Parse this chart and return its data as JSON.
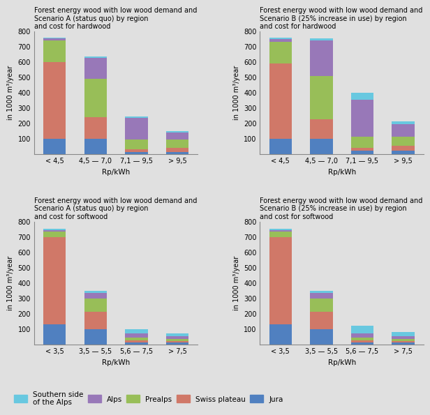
{
  "background_color": "#e0e0e0",
  "colors": {
    "jura": "#5080c0",
    "swiss_plateau": "#d07868",
    "prealps": "#98be58",
    "alps": "#9878b8",
    "southern_alps": "#68c8e0"
  },
  "legend_labels": [
    "Southern side\nof the Alps",
    "Alps",
    "Prealps",
    "Swiss plateau",
    "Jura"
  ],
  "legend_colors_order": [
    "southern_alps",
    "alps",
    "prealps",
    "swiss_plateau",
    "jura"
  ],
  "subplot_titles": [
    "Forest energy wood with low wood demand and\nScenario A (status quo) by region\nand cost for hardwood",
    "Forest energy wood with low wood demand and\nScenario B (25% increase in use) by region\nand cost for hardwood",
    "Forest energy wood with low wood demand and\nScenario A (status quo) by region\nand cost for softwood",
    "Forest energy wood with low wood demand and\nScenario B (25% increase in use) by region\nand cost for softwood"
  ],
  "ylabel": "in 1000 m³/year",
  "xlabel": "Rp/kWh",
  "ylim": [
    0,
    800
  ],
  "yticks": [
    0,
    100,
    200,
    300,
    400,
    500,
    600,
    700,
    800
  ],
  "hard_xticks": [
    "< 4,5",
    "4,5 — 7,0",
    "7,1 — 9,5",
    "> 9,5"
  ],
  "soft_xticks": [
    "< 3,5",
    "3,5 — 5,5",
    "5,6 — 7,5",
    "> 7,5"
  ],
  "stack_order": [
    "jura",
    "swiss_plateau",
    "prealps",
    "alps",
    "southern_alps"
  ],
  "data": {
    "hard_A": {
      "jura": [
        100,
        100,
        15,
        15
      ],
      "swiss_plateau": [
        500,
        140,
        15,
        25
      ],
      "prealps": [
        140,
        250,
        65,
        55
      ],
      "alps": [
        15,
        135,
        140,
        45
      ],
      "southern_alps": [
        5,
        10,
        8,
        10
      ]
    },
    "hard_B": {
      "jura": [
        100,
        100,
        20,
        20
      ],
      "swiss_plateau": [
        490,
        125,
        20,
        35
      ],
      "prealps": [
        140,
        285,
        75,
        60
      ],
      "alps": [
        20,
        230,
        240,
        80
      ],
      "southern_alps": [
        10,
        15,
        45,
        20
      ]
    },
    "soft_A": {
      "jura": [
        130,
        100,
        10,
        10
      ],
      "swiss_plateau": [
        570,
        110,
        15,
        10
      ],
      "prealps": [
        35,
        90,
        20,
        15
      ],
      "alps": [
        10,
        35,
        25,
        20
      ],
      "southern_alps": [
        10,
        15,
        30,
        15
      ]
    },
    "soft_B": {
      "jura": [
        130,
        100,
        10,
        10
      ],
      "swiss_plateau": [
        570,
        110,
        15,
        10
      ],
      "prealps": [
        35,
        90,
        20,
        15
      ],
      "alps": [
        10,
        35,
        25,
        20
      ],
      "southern_alps": [
        10,
        15,
        50,
        25
      ]
    }
  }
}
